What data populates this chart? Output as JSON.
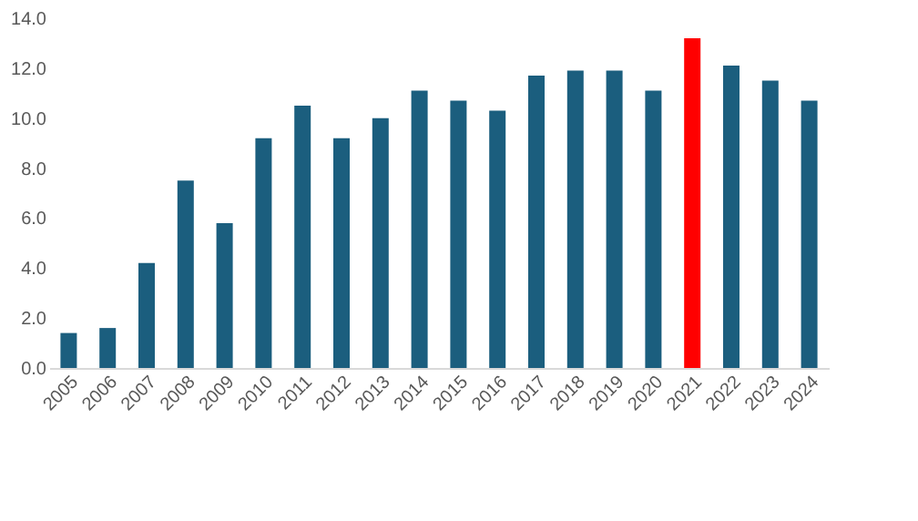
{
  "chart_data": {
    "type": "bar",
    "categories": [
      "2005",
      "2006",
      "2007",
      "2008",
      "2009",
      "2010",
      "2011",
      "2012",
      "2013",
      "2014",
      "2015",
      "2016",
      "2017",
      "2018",
      "2019",
      "2020",
      "2021",
      "2022",
      "2023",
      "2024"
    ],
    "values": [
      1.4,
      1.6,
      4.2,
      7.5,
      5.8,
      9.2,
      10.5,
      9.2,
      10.0,
      11.1,
      10.7,
      10.3,
      11.7,
      11.9,
      11.9,
      11.1,
      13.2,
      12.1,
      11.5,
      10.7
    ],
    "colors": [
      "#1b5e7e",
      "#1b5e7e",
      "#1b5e7e",
      "#1b5e7e",
      "#1b5e7e",
      "#1b5e7e",
      "#1b5e7e",
      "#1b5e7e",
      "#1b5e7e",
      "#1b5e7e",
      "#1b5e7e",
      "#1b5e7e",
      "#1b5e7e",
      "#1b5e7e",
      "#1b5e7e",
      "#1b5e7e",
      "#ff0000",
      "#1b5e7e",
      "#1b5e7e",
      "#1b5e7e"
    ],
    "ylim": [
      0,
      14
    ],
    "yticks": [
      {
        "value": 0,
        "label": "0.0"
      },
      {
        "value": 2,
        "label": "2.0"
      },
      {
        "value": 4,
        "label": "4.0"
      },
      {
        "value": 6,
        "label": "6.0"
      },
      {
        "value": 8,
        "label": "8.0"
      },
      {
        "value": 10,
        "label": "10.0"
      },
      {
        "value": 12,
        "label": "12.0"
      },
      {
        "value": 14,
        "label": "14.0"
      }
    ],
    "grid": false
  }
}
